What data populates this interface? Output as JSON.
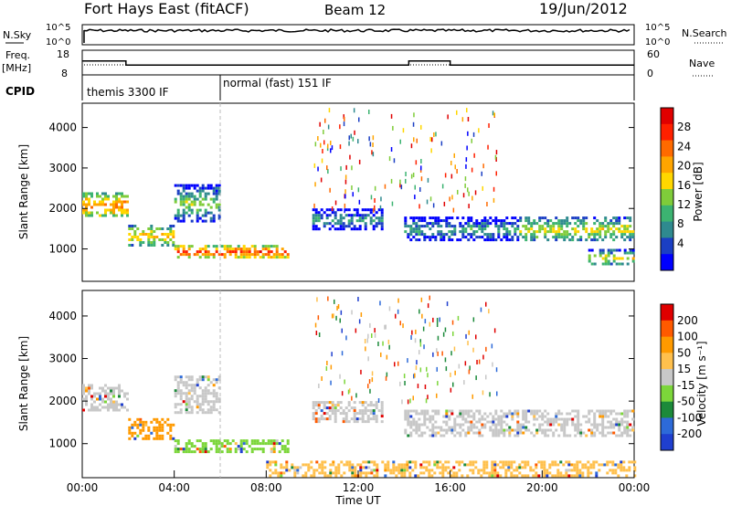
{
  "header": {
    "title": "Fort Hays East (fitACF)",
    "beam": "Beam 12",
    "date": "19/Jun/2012"
  },
  "top_panels": {
    "nsky_label": "N.Sky",
    "nsky_ticks": [
      "10^5",
      "10^0"
    ],
    "nsearch_label": "N.Search",
    "nsearch_ticks": [
      "10^5",
      "10^0"
    ],
    "freq_label": "Freq.",
    "freq_unit": "[MHz]",
    "freq_ticks": [
      "18",
      "8"
    ],
    "nave_label": "Nave",
    "nave_ticks": [
      "60",
      "0"
    ],
    "cpid_label": "CPID",
    "cpid_segments": [
      {
        "start_hour": 0,
        "end_hour": 6,
        "label": "themis 3300 IF"
      },
      {
        "start_hour": 6,
        "end_hour": 24,
        "label": "normal (fast) 151 IF"
      }
    ],
    "freq_steps": [
      {
        "start_hour": 0,
        "end_hour": 1.9,
        "value": 14
      },
      {
        "start_hour": 1.9,
        "end_hour": 14.2,
        "value": 12
      },
      {
        "start_hour": 14.2,
        "end_hour": 16.0,
        "value": 14
      },
      {
        "start_hour": 16.0,
        "end_hour": 24,
        "value": 12
      }
    ]
  },
  "chart_data": [
    {
      "type": "heatmap",
      "name": "power",
      "ylabel": "Slant Range [km]",
      "y_ticks": [
        "4000",
        "3000",
        "2000",
        "1000"
      ],
      "ylim": [
        200,
        4600
      ],
      "colorbar_label": "Power [dB]",
      "colorbar_ticks": [
        "28",
        "24",
        "20",
        "16",
        "12",
        "8",
        "4"
      ],
      "colorbar_colors": [
        "#0000ff",
        "#1b3fc4",
        "#2f8a8f",
        "#3cb371",
        "#7fcc3a",
        "#ffd700",
        "#ffa500",
        "#ff6a00",
        "#ff2000",
        "#e00000"
      ],
      "bands": [
        {
          "x": [
            0,
            2
          ],
          "y": [
            1800,
            2400
          ],
          "level": 7
        },
        {
          "x": [
            2,
            4
          ],
          "y": [
            1100,
            1600
          ],
          "level": 6
        },
        {
          "x": [
            4,
            6
          ],
          "y": [
            1700,
            2600
          ],
          "level": 4
        },
        {
          "x": [
            4,
            9
          ],
          "y": [
            800,
            1100
          ],
          "level": 8
        },
        {
          "x": [
            10,
            13
          ],
          "y": [
            1500,
            2000
          ],
          "level": 3
        },
        {
          "x": [
            14,
            19
          ],
          "y": [
            1200,
            1800
          ],
          "level": 3
        },
        {
          "x": [
            19,
            24
          ],
          "y": [
            1200,
            1800
          ],
          "level": 5
        },
        {
          "x": [
            22,
            24
          ],
          "y": [
            600,
            1000
          ],
          "level": 5
        }
      ]
    },
    {
      "type": "heatmap",
      "name": "velocity",
      "ylabel": "Slant Range [km]",
      "y_ticks": [
        "4000",
        "3000",
        "2000",
        "1000"
      ],
      "ylim": [
        200,
        4600
      ],
      "xlabel": "Time UT",
      "x_ticks": [
        "00:00",
        "04:00",
        "08:00",
        "12:00",
        "16:00",
        "20:00",
        "00:00"
      ],
      "xlim": [
        0,
        24
      ],
      "colorbar_label": "Velocity [m s⁻¹]",
      "colorbar_ticks": [
        "200",
        "100",
        "50",
        "15",
        "-15",
        "-50",
        "-100",
        "-200"
      ],
      "colorbar_colors": [
        "#1f3fcf",
        "#2d6ad8",
        "#1c8a3a",
        "#7cd63a",
        "#c8c8c8",
        "#ffc04d",
        "#ff9a00",
        "#ff5a00",
        "#e00000"
      ],
      "bands": [
        {
          "x": [
            0,
            2
          ],
          "y": [
            1800,
            2400
          ],
          "color": "#c8c8c8"
        },
        {
          "x": [
            2,
            4
          ],
          "y": [
            1100,
            1600
          ],
          "color": "#ff9a00"
        },
        {
          "x": [
            4,
            6
          ],
          "y": [
            1700,
            2600
          ],
          "color": "#c8c8c8"
        },
        {
          "x": [
            4,
            9
          ],
          "y": [
            800,
            1100
          ],
          "color": "#7cd63a"
        },
        {
          "x": [
            10,
            13
          ],
          "y": [
            1500,
            2000
          ],
          "color": "#c8c8c8"
        },
        {
          "x": [
            14,
            19
          ],
          "y": [
            1200,
            1800
          ],
          "color": "#c8c8c8"
        },
        {
          "x": [
            19,
            24
          ],
          "y": [
            1200,
            1800
          ],
          "color": "#c8c8c8"
        },
        {
          "x": [
            8,
            24
          ],
          "y": [
            250,
            600
          ],
          "color": "#ffc04d"
        }
      ]
    }
  ]
}
